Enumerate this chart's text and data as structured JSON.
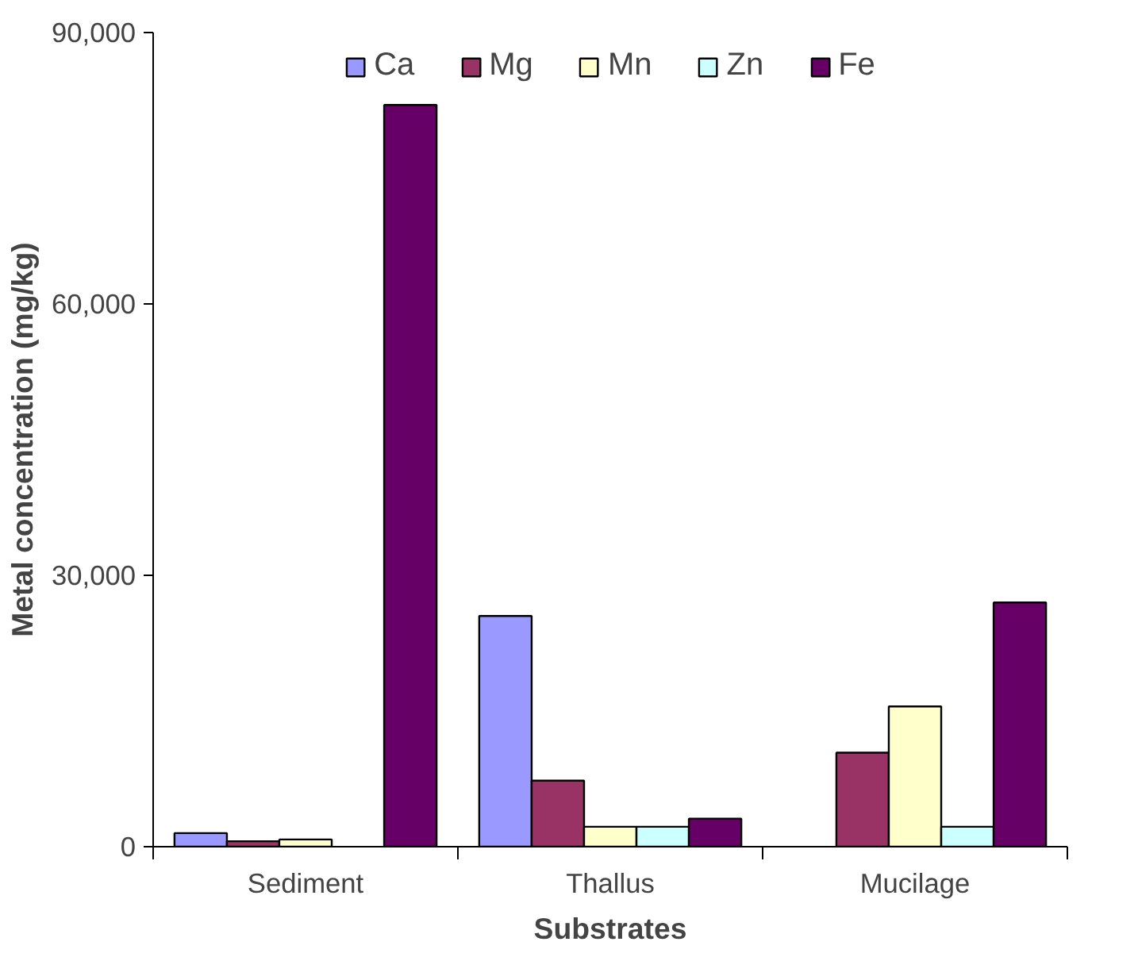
{
  "chart_data": {
    "type": "bar",
    "xlabel": "Substrates",
    "ylabel": "Metal concentration (mg/kg)",
    "categories": [
      "Sediment",
      "Thallus",
      "Mucilage"
    ],
    "series": [
      {
        "name": "Ca",
        "color": "#9999ff",
        "values": [
          1500,
          25500,
          null
        ]
      },
      {
        "name": "Mg",
        "color": "#993366",
        "values": [
          600,
          7300,
          10400
        ]
      },
      {
        "name": "Mn",
        "color": "#ffffcc",
        "values": [
          800,
          2200,
          15500
        ]
      },
      {
        "name": "Zn",
        "color": "#ccffff",
        "values": [
          null,
          2200,
          2200
        ]
      },
      {
        "name": "Fe",
        "color": "#660066",
        "values": [
          82000,
          3100,
          27000
        ]
      }
    ],
    "ylim": [
      0,
      90000
    ],
    "yticks": [
      0,
      {
        "value": 30000,
        "label": "30,000"
      },
      {
        "value": 60000,
        "label": "60,000"
      },
      {
        "value": 90000,
        "label": "90,000"
      }
    ],
    "grid": false,
    "legend": "top"
  }
}
